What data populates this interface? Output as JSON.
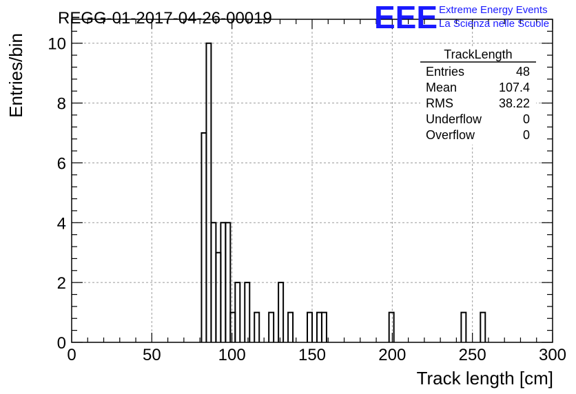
{
  "logo": {
    "mark": "EEE",
    "line1": "Extreme Energy Events",
    "line2": "La Scienza nelle Scuole",
    "color": "#1a1aff"
  },
  "stats_box": {
    "title": "TrackLength",
    "rows": [
      {
        "label": "Entries",
        "value": "48"
      },
      {
        "label": "Mean",
        "value": "107.4"
      },
      {
        "label": "RMS",
        "value": "38.22"
      },
      {
        "label": "Underflow",
        "value": "0"
      },
      {
        "label": "Overflow",
        "value": "0"
      }
    ]
  },
  "chart_data": {
    "type": "bar",
    "title": "REGG-01-2017-04-26-00019",
    "xlabel": "Track length [cm]",
    "ylabel": "Entries/bin",
    "xlim": [
      0,
      300
    ],
    "ylim": [
      0,
      10.8
    ],
    "grid": true,
    "xticks": [
      0,
      50,
      100,
      150,
      200,
      250,
      300
    ],
    "yticks": [
      0,
      2,
      4,
      6,
      8,
      10
    ],
    "bin_width": 3,
    "bins": [
      {
        "x0": 81,
        "x1": 84,
        "count": 7
      },
      {
        "x0": 84,
        "x1": 87,
        "count": 10
      },
      {
        "x0": 87,
        "x1": 90,
        "count": 4
      },
      {
        "x0": 90,
        "x1": 93,
        "count": 3
      },
      {
        "x0": 93,
        "x1": 96,
        "count": 4
      },
      {
        "x0": 96,
        "x1": 99,
        "count": 4
      },
      {
        "x0": 99,
        "x1": 102,
        "count": 1
      },
      {
        "x0": 102,
        "x1": 105,
        "count": 2
      },
      {
        "x0": 108,
        "x1": 111,
        "count": 2
      },
      {
        "x0": 114,
        "x1": 117,
        "count": 1
      },
      {
        "x0": 123,
        "x1": 126,
        "count": 1
      },
      {
        "x0": 129,
        "x1": 132,
        "count": 2
      },
      {
        "x0": 135,
        "x1": 138,
        "count": 1
      },
      {
        "x0": 147,
        "x1": 150,
        "count": 1
      },
      {
        "x0": 153,
        "x1": 156,
        "count": 1
      },
      {
        "x0": 156,
        "x1": 159,
        "count": 1
      },
      {
        "x0": 198,
        "x1": 201,
        "count": 1
      },
      {
        "x0": 243,
        "x1": 246,
        "count": 1
      },
      {
        "x0": 255,
        "x1": 258,
        "count": 1
      }
    ]
  }
}
